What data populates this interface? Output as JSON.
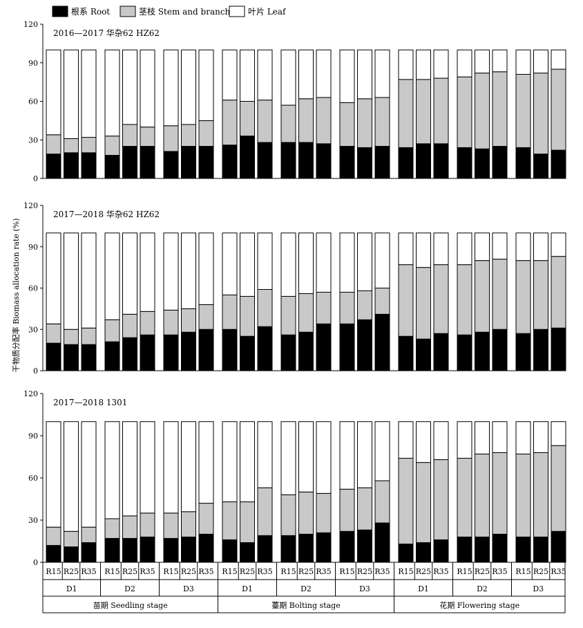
{
  "legend": {
    "root": "根系 Root",
    "stem": "茎枝 Stem and branch",
    "leaf": "叶片 Leaf"
  },
  "colors": {
    "root": "#000000",
    "stem": "#c8c8c8",
    "leaf": "#ffffff",
    "stroke": "#000000"
  },
  "y_axis_label": "干物质分配率 Biomass allocation rate (%)",
  "chart_data": [
    {
      "type": "bar",
      "stacked": true,
      "title": "2016—2017 华杂62 HZ62",
      "ylim": [
        0,
        120
      ],
      "yticks": [
        0,
        30,
        60,
        90,
        120
      ],
      "categories": [
        "R15",
        "R25",
        "R35",
        "R15",
        "R25",
        "R35",
        "R15",
        "R25",
        "R35",
        "R15",
        "R25",
        "R35",
        "R15",
        "R25",
        "R35",
        "R15",
        "R25",
        "R35",
        "R15",
        "R25",
        "R35",
        "R15",
        "R25",
        "R35",
        "R15",
        "R25",
        "R35"
      ],
      "series": [
        {
          "name": "根系 Root",
          "values": [
            19,
            20,
            20,
            18,
            25,
            25,
            21,
            25,
            25,
            26,
            33,
            28,
            28,
            28,
            27,
            25,
            24,
            25,
            24,
            27,
            27,
            24,
            23,
            25,
            24,
            19,
            22
          ]
        },
        {
          "name": "茎枝 Stem and branch",
          "values": [
            15,
            11,
            12,
            15,
            17,
            15,
            20,
            17,
            20,
            35,
            27,
            33,
            29,
            34,
            36,
            34,
            38,
            38,
            53,
            50,
            51,
            55,
            59,
            58,
            57,
            63,
            63
          ]
        },
        {
          "name": "叶片 Leaf",
          "values": [
            66,
            69,
            68,
            67,
            58,
            60,
            59,
            58,
            55,
            39,
            40,
            39,
            43,
            38,
            37,
            41,
            38,
            37,
            23,
            23,
            22,
            21,
            18,
            17,
            19,
            18,
            15
          ]
        }
      ]
    },
    {
      "type": "bar",
      "stacked": true,
      "title": "2017—2018 华杂62 HZ62",
      "ylim": [
        0,
        120
      ],
      "yticks": [
        0,
        30,
        60,
        90,
        120
      ],
      "categories": [
        "R15",
        "R25",
        "R35",
        "R15",
        "R25",
        "R35",
        "R15",
        "R25",
        "R35",
        "R15",
        "R25",
        "R35",
        "R15",
        "R25",
        "R35",
        "R15",
        "R25",
        "R35",
        "R15",
        "R25",
        "R35",
        "R15",
        "R25",
        "R35",
        "R15",
        "R25",
        "R35"
      ],
      "series": [
        {
          "name": "根系 Root",
          "values": [
            20,
            19,
            19,
            21,
            24,
            26,
            26,
            28,
            30,
            30,
            25,
            32,
            26,
            28,
            34,
            34,
            37,
            41,
            25,
            23,
            27,
            26,
            28,
            30,
            27,
            30,
            31
          ]
        },
        {
          "name": "茎枝 Stem and branch",
          "values": [
            14,
            11,
            12,
            16,
            17,
            17,
            18,
            17,
            18,
            25,
            29,
            27,
            28,
            28,
            23,
            23,
            21,
            19,
            52,
            52,
            50,
            51,
            52,
            51,
            53,
            50,
            52
          ]
        },
        {
          "name": "叶片 Leaf",
          "values": [
            66,
            70,
            69,
            63,
            59,
            57,
            56,
            55,
            52,
            45,
            46,
            41,
            46,
            44,
            43,
            43,
            42,
            40,
            23,
            25,
            23,
            23,
            20,
            19,
            20,
            20,
            17
          ]
        }
      ]
    },
    {
      "type": "bar",
      "stacked": true,
      "title": "2017—2018 1301",
      "ylim": [
        0,
        120
      ],
      "yticks": [
        0,
        30,
        60,
        90,
        120
      ],
      "categories": [
        "R15",
        "R25",
        "R35",
        "R15",
        "R25",
        "R35",
        "R15",
        "R25",
        "R35",
        "R15",
        "R25",
        "R35",
        "R15",
        "R25",
        "R35",
        "R15",
        "R25",
        "R35",
        "R15",
        "R25",
        "R35",
        "R15",
        "R25",
        "R35",
        "R15",
        "R25",
        "R35"
      ],
      "series": [
        {
          "name": "根系 Root",
          "values": [
            12,
            11,
            14,
            17,
            17,
            18,
            17,
            18,
            20,
            16,
            14,
            19,
            19,
            20,
            21,
            22,
            23,
            28,
            13,
            14,
            16,
            18,
            18,
            20,
            18,
            18,
            22
          ]
        },
        {
          "name": "茎枝 Stem and branch",
          "values": [
            13,
            11,
            11,
            14,
            16,
            17,
            18,
            18,
            22,
            27,
            29,
            34,
            29,
            30,
            28,
            30,
            30,
            30,
            61,
            57,
            57,
            56,
            59,
            58,
            59,
            60,
            61
          ]
        },
        {
          "name": "叶片 Leaf",
          "values": [
            75,
            78,
            75,
            69,
            67,
            65,
            65,
            64,
            58,
            57,
            57,
            47,
            52,
            50,
            51,
            48,
            47,
            42,
            26,
            29,
            27,
            26,
            23,
            22,
            23,
            22,
            17
          ]
        }
      ]
    }
  ],
  "group_labels": [
    "D1",
    "D2",
    "D3",
    "D1",
    "D2",
    "D3",
    "D1",
    "D2",
    "D3"
  ],
  "stage_labels": [
    "苗期 Seedling stage",
    "薹期 Bolting stage",
    "花期 Flowering stage"
  ]
}
